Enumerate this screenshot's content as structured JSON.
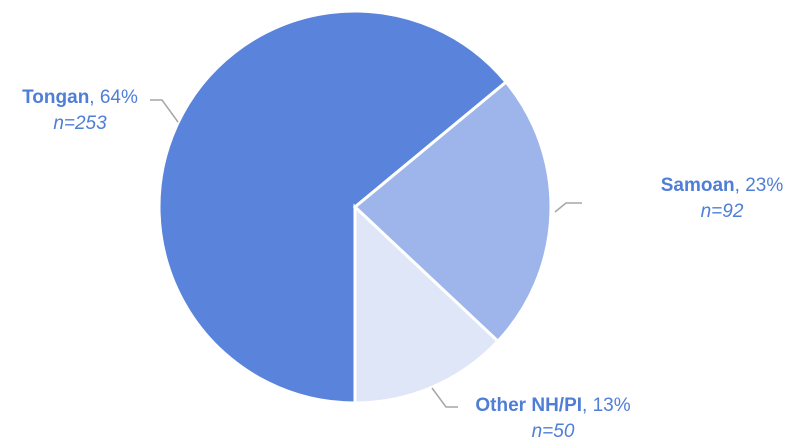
{
  "chart_data": {
    "type": "pie",
    "categories": [
      "Tongan",
      "Samoan",
      "Other NH/PI"
    ],
    "values": [
      64,
      23,
      13
    ],
    "value_labels": [
      ", 64%",
      ", 23%",
      ", 13%"
    ],
    "count_labels": [
      "n=253",
      "n=92",
      "n=50"
    ],
    "colors": [
      "#5a83db",
      "#9db5ea",
      "#dfe6f7"
    ],
    "start_angle": 180,
    "direction": "clockwise"
  }
}
